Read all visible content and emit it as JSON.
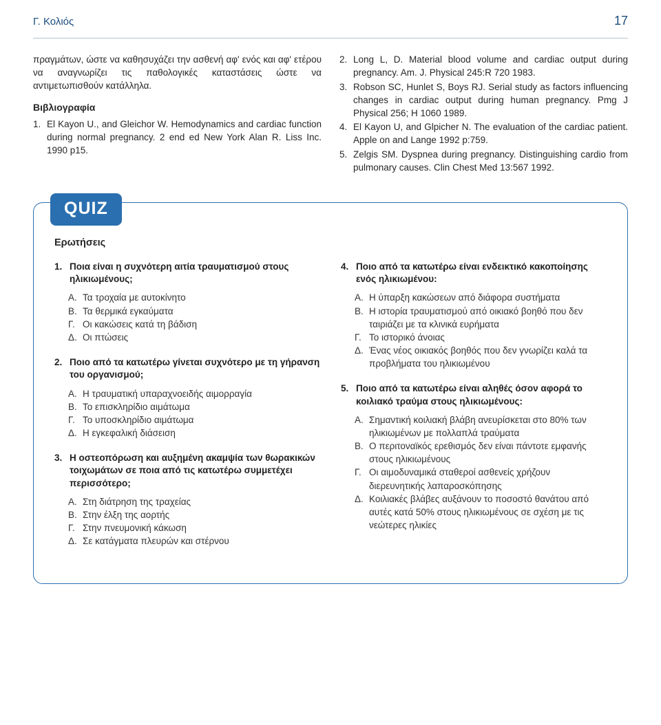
{
  "header": {
    "author": "Γ. Κολιός",
    "pageNumber": "17"
  },
  "mainText": {
    "intro": "πραγμάτων, ώστε να καθησυχάζει την ασθενή αφ' ενός και αφ' ετέρου να αναγνωρίζει τις παθολογικές καταστάσεις ώστε να αντιμετωπισθούν κατάλληλα.",
    "bibHeading": "Βιβλιογραφία",
    "refsLeft": [
      {
        "n": "1.",
        "t": "El Kayon U., and Gleichor W. Hemodynamics and cardiac function during normal pregnancy. 2 end ed New York Alan R. Liss Inc. 1990 p15."
      }
    ],
    "refsRight": [
      {
        "n": "2.",
        "t": "Long L, D. Material blood volume and cardiac output during pregnancy. Am. J. Physical 245:R 720 1983."
      },
      {
        "n": "3.",
        "t": "Robson SC, Hunlet S, Boys RJ. Serial study as factors influencing changes in cardiac output during human pregnancy. Pmg J Physical 256; H 1060 1989."
      },
      {
        "n": "4.",
        "t": "El Kayon U, and Glpicher N. The evaluation of the cardiac patient. Apple on and Lange 1992 p:759."
      },
      {
        "n": "5.",
        "t": "Zelgis SM. Dyspnea during pregnancy. Distinguishing cardio from pulmonary causes. Clin Chest Med 13:567 1992."
      }
    ]
  },
  "quiz": {
    "badge": "QUIZ",
    "sectionTitle": "Ερωτήσεις",
    "left": [
      {
        "n": "1.",
        "q": "Ποια είναι η συχνότερη αιτία τραυματισμού στους ηλικιωμένους;",
        "opts": [
          {
            "l": "Α.",
            "t": "Τα τροχαία με αυτοκίνητο"
          },
          {
            "l": "Β.",
            "t": "Τα θερμικά εγκαύματα"
          },
          {
            "l": "Γ.",
            "t": "Οι κακώσεις κατά τη βάδιση"
          },
          {
            "l": "Δ.",
            "t": "Οι πτώσεις"
          }
        ]
      },
      {
        "n": "2.",
        "q": "Ποιο από τα κατωτέρω γίνεται συχνότερο με τη γήρανση του οργανισμού;",
        "opts": [
          {
            "l": "Α.",
            "t": "Η τραυματική υπαραχνοειδής αιμορραγία"
          },
          {
            "l": "Β.",
            "t": "Το επισκληρίδιο αιμάτωμα"
          },
          {
            "l": "Γ.",
            "t": "Το υποσκληρίδιο αιμάτωμα"
          },
          {
            "l": "Δ.",
            "t": "Η εγκεφαλική διάσειση"
          }
        ]
      },
      {
        "n": "3.",
        "q": "Η οστεοπόρωση και αυξημένη ακαμψία των θωρακικών τοιχωμάτων σε ποια από τις κατωτέρω συμμετέχει περισσότερο;",
        "opts": [
          {
            "l": "Α.",
            "t": "Στη διάτρηση της τραχείας"
          },
          {
            "l": "Β.",
            "t": "Στην έλξη της αορτής"
          },
          {
            "l": "Γ.",
            "t": "Στην πνευμονική κάκωση"
          },
          {
            "l": "Δ.",
            "t": "Σε κατάγματα πλευρών και στέρνου"
          }
        ]
      }
    ],
    "right": [
      {
        "n": "4.",
        "q": "Ποιο από τα κατωτέρω είναι ενδεικτικό κακοποίησης ενός ηλικιωμένου:",
        "opts": [
          {
            "l": "Α.",
            "t": "Η ύπαρξη κακώσεων από διάφορα συστήματα"
          },
          {
            "l": "Β.",
            "t": "Η ιστορία τραυματισμού από οικιακό βοηθό που δεν ταιριάζει με τα κλινικά ευρήματα"
          },
          {
            "l": "Γ.",
            "t": "Το ιστορικό άνοιας"
          },
          {
            "l": "Δ.",
            "t": "Ένας νέος οικιακός βοηθός που δεν γνωρίζει καλά τα προβλήματα του ηλικιωμένου"
          }
        ]
      },
      {
        "n": "5.",
        "q": "Ποιο από τα κατωτέρω είναι αληθές όσον αφορά το κοιλιακό τραύμα στους ηλικιωμένους:",
        "opts": [
          {
            "l": "Α.",
            "t": "Σημαντική κοιλιακή βλάβη ανευρίσκεται στο 80% των ηλικιωμένων με πολλαπλά τραύματα"
          },
          {
            "l": "Β.",
            "t": "Ο περιτοναϊκός ερεθισμός δεν είναι πάντοτε εμφανής στους ηλικιωμένους"
          },
          {
            "l": "Γ.",
            "t": "Οι αιμοδυναμικά σταθεροί ασθενείς χρήζουν διερευνητικής λαπαροσκόπησης"
          },
          {
            "l": "Δ.",
            "t": "Κοιλιακές βλάβες αυξάνουν το ποσοστό θανάτου από αυτές κατά 50% στους ηλικιωμένους σε σχέση με τις νεώτερες ηλικίες"
          }
        ]
      }
    ]
  }
}
